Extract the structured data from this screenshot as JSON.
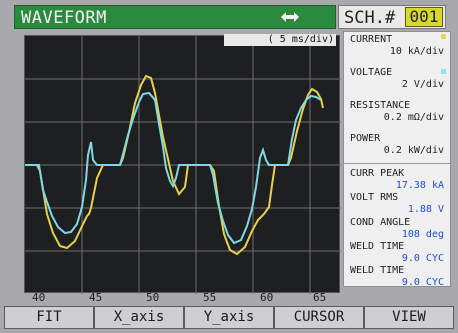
{
  "header": {
    "title": "WAVEFORM",
    "arrow_icon": "double-arrow-icon",
    "schedule_label": "SCH.#",
    "schedule_number": "001"
  },
  "plot": {
    "time_scale": "( 5 ms/div)",
    "x_ticks": [
      "40",
      "45",
      "50",
      "55",
      "60",
      "65"
    ]
  },
  "right_panel": {
    "current_label": "CURRENT",
    "current_scale": "10 kA/div",
    "voltage_label": "VOLTAGE",
    "voltage_scale": "2 V/div",
    "resistance_label": "RESISTANCE",
    "resistance_scale": "0.2 mΩ/div",
    "power_label": "POWER",
    "power_scale": "0.2 kW/div",
    "curr_peak_label": "CURR PEAK",
    "curr_peak_value": "17.38 kA",
    "volt_rms_label": "VOLT RMS",
    "volt_rms_value": "1.88 V",
    "cond_angle_label": "COND ANGLE",
    "cond_angle_value": "108 deg",
    "weld_time_1_label": "WELD TIME",
    "weld_time_1_value": "9.0 CYC",
    "weld_time_2_label": "WELD TIME",
    "weld_time_2_value": "9.0 CYC"
  },
  "softkeys": [
    "FIT",
    "X_axis",
    "Y_axis",
    "CURSOR",
    "VIEW"
  ],
  "colors": {
    "header_bg": "#2a8a3e",
    "current_trace": "#e8cf4a",
    "voltage_trace": "#7fd7e5",
    "plot_bg": "#1e1f20",
    "grid": "#6d6d6d",
    "schedule_highlight": "#d7d92a"
  }
}
